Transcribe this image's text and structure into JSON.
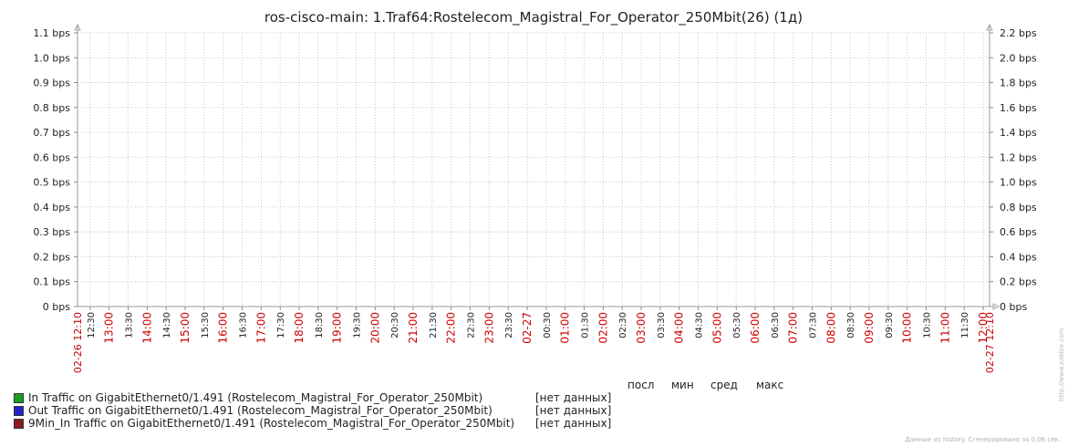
{
  "chart_data": {
    "type": "line",
    "title": "ros-cisco-main: 1.Traf64:Rostelecom_Magistral_For_Operator_250Mbit(26) (1д)",
    "y_left_ticks": [
      "0 bps",
      "0.1 bps",
      "0.2 bps",
      "0.3 bps",
      "0.4 bps",
      "0.5 bps",
      "0.6 bps",
      "0.7 bps",
      "0.8 bps",
      "0.9 bps",
      "1.0 bps",
      "1.1 bps"
    ],
    "y_right_ticks": [
      "0 bps",
      "0.2 bps",
      "0.4 bps",
      "0.6 bps",
      "0.8 bps",
      "1.0 bps",
      "1.2 bps",
      "1.4 bps",
      "1.6 bps",
      "1.8 bps",
      "2.0 bps",
      "2.2 bps"
    ],
    "ylim_left": [
      0,
      1.1
    ],
    "ylim_right": [
      0,
      2.2
    ],
    "x_start_label": "02-26 12:10",
    "x_end_label": "02-27 12:10",
    "x_ticks": [
      {
        "label": "12:30",
        "major": false
      },
      {
        "label": "13:00",
        "major": true
      },
      {
        "label": "13:30",
        "major": false
      },
      {
        "label": "14:00",
        "major": true
      },
      {
        "label": "14:30",
        "major": false
      },
      {
        "label": "15:00",
        "major": true
      },
      {
        "label": "15:30",
        "major": false
      },
      {
        "label": "16:00",
        "major": true
      },
      {
        "label": "16:30",
        "major": false
      },
      {
        "label": "17:00",
        "major": true
      },
      {
        "label": "17:30",
        "major": false
      },
      {
        "label": "18:00",
        "major": true
      },
      {
        "label": "18:30",
        "major": false
      },
      {
        "label": "19:00",
        "major": true
      },
      {
        "label": "19:30",
        "major": false
      },
      {
        "label": "20:00",
        "major": true
      },
      {
        "label": "20:30",
        "major": false
      },
      {
        "label": "21:00",
        "major": true
      },
      {
        "label": "21:30",
        "major": false
      },
      {
        "label": "22:00",
        "major": true
      },
      {
        "label": "22:30",
        "major": false
      },
      {
        "label": "23:00",
        "major": true
      },
      {
        "label": "23:30",
        "major": false
      },
      {
        "label": "02-27",
        "major": true
      },
      {
        "label": "00:30",
        "major": false
      },
      {
        "label": "01:00",
        "major": true
      },
      {
        "label": "01:30",
        "major": false
      },
      {
        "label": "02:00",
        "major": true
      },
      {
        "label": "02:30",
        "major": false
      },
      {
        "label": "03:00",
        "major": true
      },
      {
        "label": "03:30",
        "major": false
      },
      {
        "label": "04:00",
        "major": true
      },
      {
        "label": "04:30",
        "major": false
      },
      {
        "label": "05:00",
        "major": true
      },
      {
        "label": "05:30",
        "major": false
      },
      {
        "label": "06:00",
        "major": true
      },
      {
        "label": "06:30",
        "major": false
      },
      {
        "label": "07:00",
        "major": true
      },
      {
        "label": "07:30",
        "major": false
      },
      {
        "label": "08:00",
        "major": true
      },
      {
        "label": "08:30",
        "major": false
      },
      {
        "label": "09:00",
        "major": true
      },
      {
        "label": "09:30",
        "major": false
      },
      {
        "label": "10:00",
        "major": true
      },
      {
        "label": "10:30",
        "major": false
      },
      {
        "label": "11:00",
        "major": true
      },
      {
        "label": "11:30",
        "major": false
      },
      {
        "label": "12:00",
        "major": true
      }
    ],
    "series": [
      {
        "name": "In Traffic on GigabitEthernet0/1.491 (Rostelecom_Magistral_For_Operator_250Mbit)",
        "color": "#1a9e1a",
        "values": []
      },
      {
        "name": "Out Traffic on GigabitEthernet0/1.491 (Rostelecom_Magistral_For_Operator_250Mbit)",
        "color": "#2222cc",
        "values": []
      },
      {
        "name": "9Min_In Traffic on GigabitEthernet0/1.491 (Rostelecom_Magistral_For_Operator_250Mbit)",
        "color": "#8b1a1a",
        "values": []
      }
    ],
    "grid": true,
    "major_tick_color": "#cc0000"
  },
  "legend": {
    "headers": [
      "посл",
      "мин",
      "сред",
      "макс"
    ],
    "no_data": "[нет данных]"
  },
  "footer": "Данные из history. Сгенерировано за 0.06 сек.",
  "watermark": "http://www.zabbix.com"
}
